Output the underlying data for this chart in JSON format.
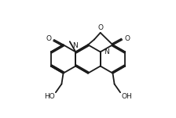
{
  "bg_color": "#ffffff",
  "line_color": "#1a1a1a",
  "line_width": 1.3,
  "font_size": 6.5,
  "figsize": [
    2.24,
    1.51
  ],
  "dpi": 100,
  "xlim": [
    0,
    10
  ],
  "ylim": [
    0,
    7
  ]
}
